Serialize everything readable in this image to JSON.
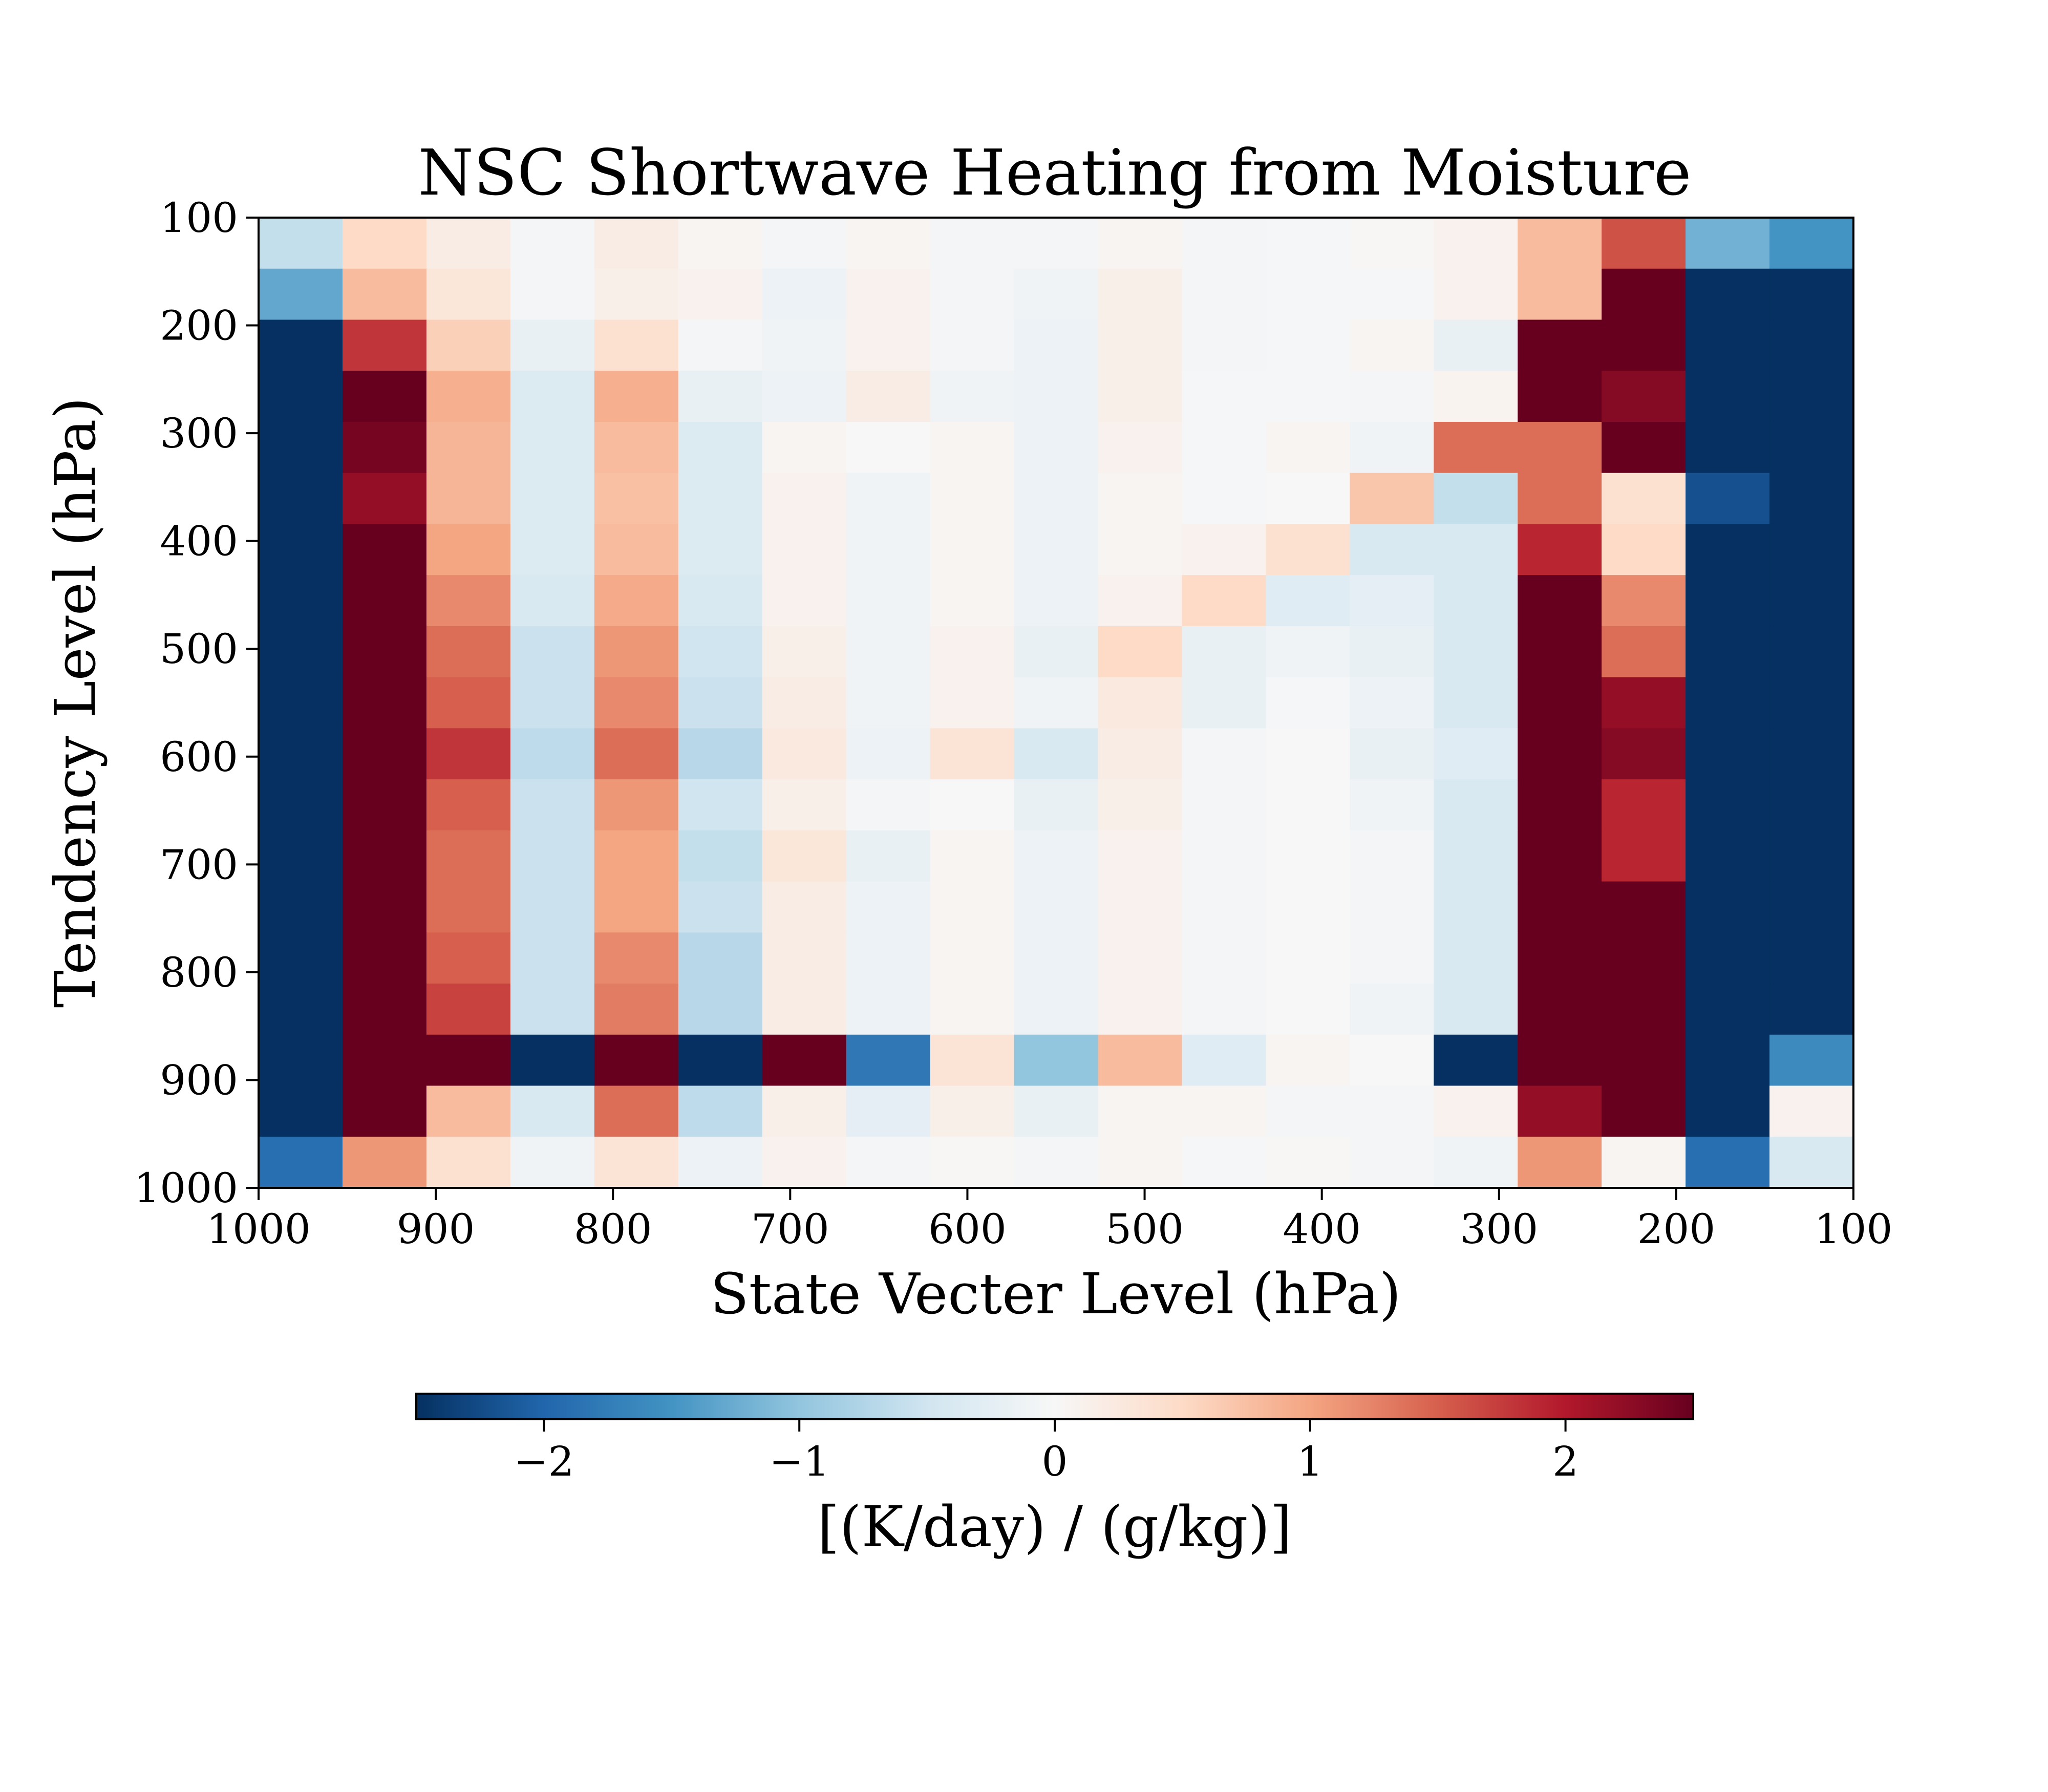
{
  "chart_data": {
    "type": "heatmap",
    "title": "NSC Shortwave Heating from Moisture",
    "xlabel": "State Vecter Level (hPa)",
    "ylabel": "Tendency Level (hPa)",
    "x_ticks": [
      "1000",
      "900",
      "800",
      "700",
      "600",
      "500",
      "400",
      "300",
      "200",
      "100"
    ],
    "y_ticks": [
      "100",
      "200",
      "300",
      "400",
      "500",
      "600",
      "700",
      "800",
      "900",
      "1000"
    ],
    "x_levels": [
      1000,
      950,
      900,
      850,
      800,
      750,
      700,
      650,
      600,
      550,
      500,
      450,
      400,
      350,
      300,
      250,
      200,
      150,
      100
    ],
    "y_levels": [
      100,
      150,
      200,
      250,
      300,
      350,
      400,
      450,
      500,
      550,
      600,
      650,
      700,
      750,
      800,
      850,
      900,
      950,
      1000
    ],
    "xlim": [
      1000,
      100
    ],
    "ylim": [
      1000,
      100
    ],
    "colormap": "RdBu_r",
    "color_range": [
      -2.5,
      2.5
    ],
    "colorbar": {
      "label": "[(K/day) / (g/kg)]",
      "ticks": [
        "−2",
        "−1",
        "0",
        "1",
        "2"
      ],
      "tick_values": [
        -2,
        -1,
        0,
        1,
        2
      ],
      "placement": "bottom"
    },
    "grid": false,
    "values": [
      [
        -0.6,
        0.5,
        0.2,
        -0.05,
        0.2,
        0.05,
        -0.05,
        0.05,
        -0.05,
        -0.05,
        0.05,
        -0.05,
        -0.02,
        0.02,
        0.1,
        0.8,
        1.6,
        -1.2,
        -1.5
      ],
      [
        -1.3,
        0.8,
        0.3,
        -0.05,
        0.15,
        0.1,
        -0.15,
        0.1,
        -0.05,
        -0.1,
        0.15,
        -0.05,
        -0.02,
        -0.02,
        0.1,
        0.8,
        2.5,
        -2.5,
        -2.5
      ],
      [
        -2.5,
        1.8,
        0.6,
        -0.2,
        0.4,
        -0.05,
        -0.1,
        0.1,
        -0.05,
        -0.15,
        0.15,
        -0.05,
        -0.02,
        0.05,
        -0.2,
        2.5,
        2.5,
        -2.5,
        -2.5
      ],
      [
        -2.5,
        2.5,
        0.9,
        -0.35,
        0.9,
        -0.2,
        -0.15,
        0.2,
        -0.1,
        -0.15,
        0.15,
        -0.02,
        -0.02,
        -0.05,
        0.08,
        2.5,
        2.3,
        -2.5,
        -2.5
      ],
      [
        -2.5,
        2.4,
        0.85,
        -0.35,
        0.8,
        -0.35,
        0.05,
        0.0,
        0.05,
        -0.15,
        0.1,
        -0.02,
        0.05,
        -0.1,
        1.4,
        1.4,
        2.5,
        -2.5,
        -2.5
      ],
      [
        -2.5,
        2.2,
        0.85,
        -0.35,
        0.75,
        -0.35,
        0.1,
        -0.1,
        0.05,
        -0.15,
        0.05,
        -0.02,
        0.0,
        0.7,
        -0.6,
        1.4,
        0.4,
        -2.2,
        -2.5
      ],
      [
        -2.5,
        2.5,
        1.0,
        -0.35,
        0.8,
        -0.35,
        0.1,
        -0.1,
        0.05,
        -0.15,
        0.05,
        0.1,
        0.4,
        -0.4,
        -0.4,
        1.9,
        0.5,
        -2.5,
        -2.5
      ],
      [
        -2.5,
        2.5,
        1.2,
        -0.4,
        0.95,
        -0.4,
        0.1,
        -0.1,
        0.05,
        -0.15,
        0.1,
        0.5,
        -0.3,
        -0.25,
        -0.4,
        2.5,
        1.2,
        -2.5,
        -2.5
      ],
      [
        -2.5,
        2.5,
        1.4,
        -0.55,
        1.1,
        -0.5,
        0.15,
        -0.1,
        0.1,
        -0.2,
        0.5,
        -0.2,
        -0.1,
        -0.2,
        -0.4,
        2.5,
        1.4,
        -2.5,
        -2.5
      ],
      [
        -2.5,
        2.5,
        1.5,
        -0.55,
        1.2,
        -0.55,
        0.2,
        -0.1,
        0.1,
        -0.1,
        0.25,
        -0.2,
        -0.02,
        -0.15,
        -0.4,
        2.5,
        2.2,
        -2.5,
        -2.5
      ],
      [
        -2.5,
        2.5,
        1.8,
        -0.65,
        1.4,
        -0.7,
        0.25,
        -0.15,
        0.35,
        -0.4,
        0.2,
        -0.05,
        0.0,
        -0.2,
        -0.3,
        2.5,
        2.3,
        -2.5,
        -2.5
      ],
      [
        -2.5,
        2.5,
        1.5,
        -0.55,
        1.1,
        -0.5,
        0.15,
        -0.05,
        0.0,
        -0.2,
        0.15,
        -0.05,
        0.0,
        -0.1,
        -0.4,
        2.5,
        1.9,
        -2.5,
        -2.5
      ],
      [
        -2.5,
        2.5,
        1.4,
        -0.55,
        1.0,
        -0.6,
        0.3,
        -0.2,
        0.05,
        -0.15,
        0.1,
        -0.05,
        0.0,
        -0.05,
        -0.4,
        2.5,
        1.9,
        -2.5,
        -2.5
      ],
      [
        -2.5,
        2.5,
        1.4,
        -0.55,
        1.0,
        -0.55,
        0.2,
        -0.15,
        0.05,
        -0.15,
        0.1,
        -0.05,
        0.0,
        -0.05,
        -0.4,
        2.5,
        2.5,
        -2.5,
        -2.5
      ],
      [
        -2.5,
        2.5,
        1.5,
        -0.55,
        1.2,
        -0.7,
        0.2,
        -0.15,
        0.05,
        -0.15,
        0.1,
        -0.05,
        0.0,
        -0.05,
        -0.4,
        2.5,
        2.5,
        -2.5,
        -2.5
      ],
      [
        -2.5,
        2.5,
        1.7,
        -0.55,
        1.3,
        -0.7,
        0.2,
        -0.15,
        0.05,
        -0.15,
        0.1,
        -0.05,
        0.0,
        -0.1,
        -0.4,
        2.5,
        2.5,
        -2.5,
        -2.5
      ],
      [
        -2.5,
        2.5,
        2.5,
        -2.5,
        2.5,
        -2.5,
        2.5,
        -1.8,
        0.35,
        -1.0,
        0.8,
        -0.3,
        0.05,
        0.0,
        -2.5,
        2.5,
        2.5,
        -2.5,
        -1.6
      ],
      [
        -2.5,
        2.5,
        0.8,
        -0.4,
        1.4,
        -0.65,
        0.15,
        -0.25,
        0.15,
        -0.2,
        0.05,
        0.05,
        -0.05,
        -0.05,
        0.1,
        2.2,
        2.5,
        -2.5,
        0.1
      ],
      [
        -1.9,
        1.1,
        0.4,
        -0.1,
        0.35,
        -0.15,
        0.1,
        -0.05,
        0.02,
        -0.05,
        0.05,
        -0.02,
        0.02,
        -0.05,
        -0.1,
        1.1,
        0.05,
        -1.9,
        -0.4
      ]
    ]
  }
}
